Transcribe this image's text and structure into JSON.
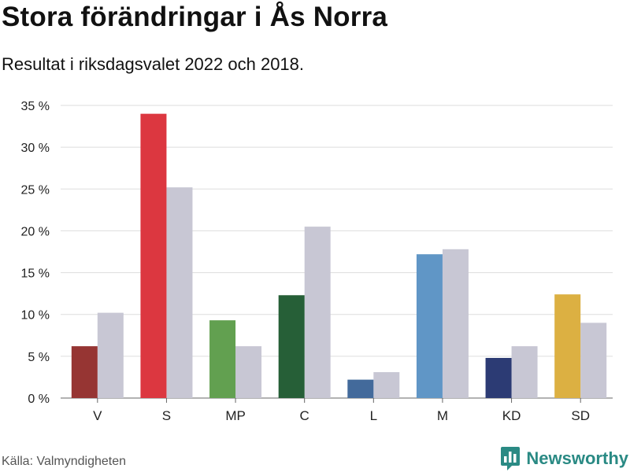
{
  "header": {
    "title": "Stora förändringar i Ås Norra",
    "subtitle": "Resultat i riksdagsvalet 2022 och 2018."
  },
  "footer": {
    "source": "Källa: Valmyndigheten",
    "brand": "Newsworthy",
    "brand_color": "#2a8a84"
  },
  "chart_data": {
    "type": "bar",
    "categories": [
      "V",
      "S",
      "MP",
      "C",
      "L",
      "M",
      "KD",
      "SD"
    ],
    "series": [
      {
        "values": [
          6.2,
          34.0,
          9.3,
          12.3,
          2.2,
          17.2,
          4.8,
          12.4
        ],
        "colors": [
          "#963533",
          "#dc3740",
          "#62a050",
          "#265f37",
          "#436a9b",
          "#6096c6",
          "#2c3b74",
          "#dcb042"
        ]
      },
      {
        "values": [
          10.2,
          25.2,
          6.2,
          20.5,
          3.1,
          17.8,
          6.2,
          9.0
        ],
        "color": "#c8c7d4"
      }
    ],
    "ylim": [
      0,
      35
    ],
    "yticks": [
      "0 %",
      "5 %",
      "10 %",
      "15 %",
      "20 %",
      "25 %",
      "30 %",
      "35 %"
    ],
    "grid": true
  }
}
